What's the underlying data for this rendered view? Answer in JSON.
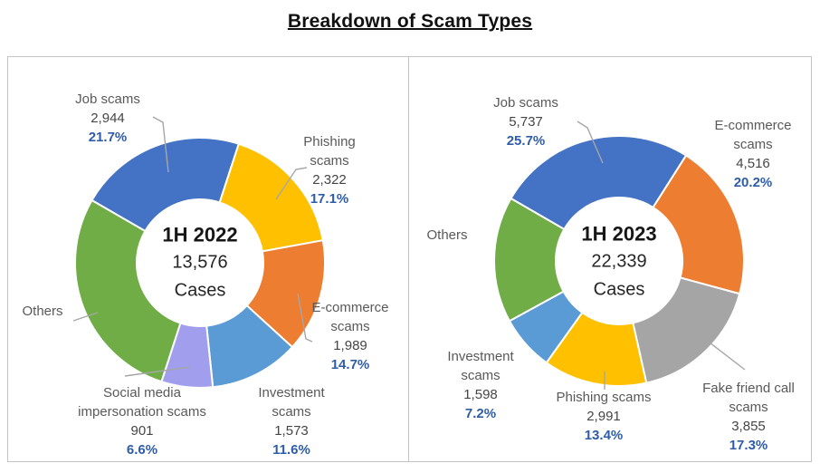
{
  "title": "Breakdown of Scam Types",
  "colors": {
    "percent_text": "#2e5ca8",
    "leader_line": "#a6a6a6",
    "slice_border": "#ffffff"
  },
  "chart_data": [
    {
      "type": "donut",
      "center": {
        "title": "1H 2022",
        "total": "13,576",
        "unit": "Cases"
      },
      "total_value": 13576,
      "start_angle": -60,
      "segments": [
        {
          "label": "Job scams",
          "value": 2944,
          "count": "2,944",
          "pct": "21.7%",
          "color": "#4472C4"
        },
        {
          "label": "Phishing scams",
          "value": 2322,
          "count": "2,322",
          "pct": "17.1%",
          "color": "#FFC000"
        },
        {
          "label": "E-commerce scams",
          "value": 1989,
          "count": "1,989",
          "pct": "14.7%",
          "color": "#ED7D31"
        },
        {
          "label": "Investment scams",
          "value": 1573,
          "count": "1,573",
          "pct": "11.6%",
          "color": "#5B9BD5"
        },
        {
          "label": "Social media impersonation scams",
          "value": 901,
          "count": "901",
          "pct": "6.6%",
          "color": "#A29EEE"
        },
        {
          "label": "Others",
          "value": 3847,
          "count": "",
          "pct": "",
          "color": "#70AD47"
        }
      ]
    },
    {
      "type": "donut",
      "center": {
        "title": "1H 2023",
        "total": "22,339",
        "unit": "Cases"
      },
      "total_value": 22339,
      "start_angle": -60,
      "segments": [
        {
          "label": "Job scams",
          "value": 5737,
          "count": "5,737",
          "pct": "25.7%",
          "color": "#4472C4"
        },
        {
          "label": "E-commerce scams",
          "value": 4516,
          "count": "4,516",
          "pct": "20.2%",
          "color": "#ED7D31"
        },
        {
          "label": "Fake friend call scams",
          "value": 3855,
          "count": "3,855",
          "pct": "17.3%",
          "color": "#A5A5A5"
        },
        {
          "label": "Phishing scams",
          "value": 2991,
          "count": "2,991",
          "pct": "13.4%",
          "color": "#FFC000"
        },
        {
          "label": "Investment scams",
          "value": 1598,
          "count": "1,598",
          "pct": "7.2%",
          "color": "#5B9BD5"
        },
        {
          "label": "Others",
          "value": 3642,
          "count": "",
          "pct": "",
          "color": "#70AD47"
        }
      ]
    }
  ]
}
